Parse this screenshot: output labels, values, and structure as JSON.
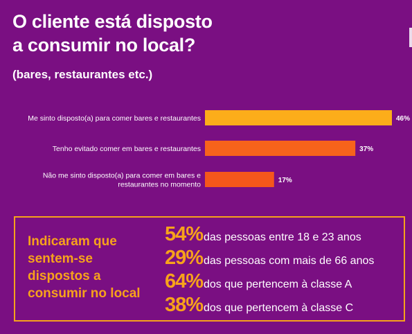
{
  "title_line1": "O cliente está disposto",
  "title_line2": "a consumir no local?",
  "subtitle": "(bares, restaurantes etc.)",
  "colors": {
    "background": "#7a0f82",
    "accent": "#f7a21b",
    "bar1": "#fcad1a",
    "bar2": "#f7631b",
    "bar3": "#f5571b"
  },
  "chart_data": {
    "type": "bar",
    "orientation": "horizontal",
    "categories": [
      [
        "Me sinto disposto(a) para comer bares e restaurantes"
      ],
      [
        "Tenho evitado comer em bares e restaurantes"
      ],
      [
        "Não me sinto disposto(a) para comer em bares e",
        "restaurantes no momento"
      ]
    ],
    "values": [
      46,
      37,
      17
    ],
    "value_labels": [
      "46%",
      "37%",
      "17%"
    ],
    "xlim": [
      0,
      46
    ],
    "grid": false,
    "legend": "none"
  },
  "summary": {
    "heading_lines": [
      "Indicaram que",
      "sentem-se",
      "dispostos a",
      "consumir no local"
    ],
    "stats": [
      {
        "pct": "54%",
        "text": "das pessoas entre 18 e 23 anos"
      },
      {
        "pct": "29%",
        "text": "das pessoas com mais de 66 anos"
      },
      {
        "pct": "64%",
        "text": "dos que pertencem à classe A"
      },
      {
        "pct": "38%",
        "text": "dos que pertencem à classe C"
      }
    ]
  }
}
